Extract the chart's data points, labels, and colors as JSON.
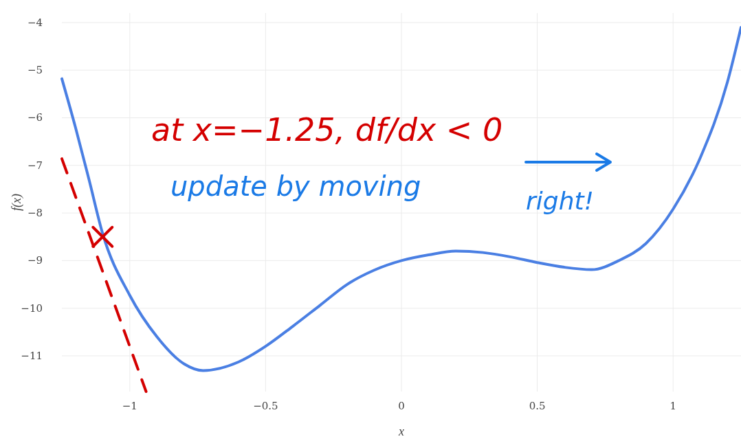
{
  "chart_data": {
    "type": "line",
    "xlabel": "x",
    "ylabel": "f(x)",
    "xlim": [
      -1.25,
      1.25
    ],
    "ylim": [
      -11.75,
      -3.8
    ],
    "xticks": [
      {
        "value": -1,
        "label": "−1"
      },
      {
        "value": -0.5,
        "label": "−0.5"
      },
      0,
      0.5,
      1
    ],
    "yticks": [
      {
        "value": -11,
        "label": "−11"
      },
      {
        "value": -10,
        "label": "−10"
      },
      {
        "value": -9,
        "label": "−9"
      },
      {
        "value": -8,
        "label": "−8"
      },
      {
        "value": -7,
        "label": "−7"
      },
      {
        "value": -6,
        "label": "−6"
      },
      {
        "value": -5,
        "label": "−5"
      },
      {
        "value": -4,
        "label": "−4"
      }
    ],
    "grid": true,
    "series": [
      {
        "color": "#4a7fe3",
        "line_style": "solid",
        "x": [
          -1.25,
          -1.2,
          -1.15,
          -1.1,
          -1.0,
          -0.9,
          -0.8,
          -0.73,
          -0.6,
          -0.5,
          -0.4,
          -0.3,
          -0.2,
          -0.1,
          0,
          0.1,
          0.2,
          0.3,
          0.4,
          0.5,
          0.6,
          0.7,
          0.8,
          0.9,
          1.0,
          1.1,
          1.2,
          1.25
        ],
        "values": [
          -5.18,
          -6.2,
          -7.3,
          -8.43,
          -9.73,
          -10.6,
          -11.17,
          -11.31,
          -11.13,
          -10.8,
          -10.38,
          -9.94,
          -9.5,
          -9.2,
          -9.0,
          -8.88,
          -8.8,
          -8.83,
          -8.92,
          -9.04,
          -9.14,
          -9.19,
          -9.0,
          -8.64,
          -7.92,
          -6.84,
          -5.25,
          -4.1
        ]
      },
      {
        "type": "line",
        "color": "#d40000",
        "line_style": "dashed",
        "x": [
          -1.25,
          -0.94
        ],
        "values": [
          -6.86,
          -11.75
        ]
      },
      {
        "type": "scatter",
        "color": "#d40000",
        "marker": "cross",
        "x": [
          -1.1
        ],
        "values": [
          -8.5
        ]
      }
    ],
    "annotations": [
      "at x=−1.25, df/dx < 0",
      "update by moving",
      "right!"
    ]
  }
}
